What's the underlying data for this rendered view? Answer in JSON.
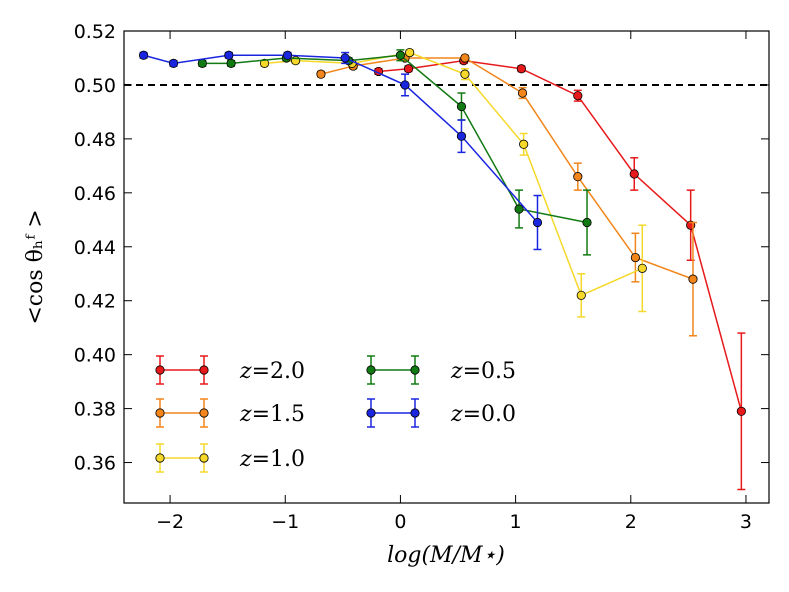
{
  "chart_data": {
    "type": "line",
    "xlabel": "log(M/M⋆)",
    "ylabel": "<cos θₕᶠ >",
    "xlim": [
      -2.4,
      3.2
    ],
    "ylim": [
      0.345,
      0.52
    ],
    "xticks": [
      -2,
      -1,
      0,
      1,
      2,
      3
    ],
    "xtick_labels": [
      "−2",
      "−1",
      "0",
      "1",
      "2",
      "3"
    ],
    "yticks": [
      0.36,
      0.38,
      0.4,
      0.42,
      0.44,
      0.46,
      0.48,
      0.5,
      0.52
    ],
    "ytick_labels": [
      "0.36",
      "0.38",
      "0.40",
      "0.42",
      "0.44",
      "0.46",
      "0.48",
      "0.50",
      "0.52"
    ],
    "reference_line": {
      "y": 0.5,
      "style": "dashed",
      "color": "#000000"
    },
    "grid": false,
    "legend_position": "lower-left",
    "series": [
      {
        "name": "z = 2.0",
        "color": "#e8191a",
        "x": [
          -0.19,
          0.07,
          0.55,
          1.05,
          1.54,
          2.03,
          2.52,
          2.96
        ],
        "y": [
          0.505,
          0.506,
          0.509,
          0.506,
          0.496,
          0.467,
          0.448,
          0.379
        ],
        "err": [
          0.001,
          0.001,
          0.001,
          0.001,
          0.002,
          0.006,
          0.013,
          0.029
        ]
      },
      {
        "name": "z = 1.5",
        "color": "#f2861a",
        "x": [
          -0.69,
          -0.41,
          0.04,
          0.56,
          1.06,
          1.54,
          2.04,
          2.54
        ],
        "y": [
          0.504,
          0.507,
          0.51,
          0.51,
          0.497,
          0.466,
          0.436,
          0.428
        ],
        "err": [
          0.001,
          0.001,
          0.001,
          0.001,
          0.002,
          0.005,
          0.009,
          0.021
        ]
      },
      {
        "name": "z = 1.0",
        "color": "#f5d82a",
        "x": [
          -1.18,
          -0.91,
          -0.42,
          0.08,
          0.56,
          1.07,
          1.57,
          2.1
        ],
        "y": [
          0.508,
          0.509,
          0.508,
          0.512,
          0.504,
          0.478,
          0.422,
          0.432
        ],
        "err": [
          0.001,
          0.001,
          0.001,
          0.001,
          0.002,
          0.004,
          0.008,
          0.016
        ]
      },
      {
        "name": "z = 0.5",
        "color": "#127a12",
        "x": [
          -1.72,
          -1.47,
          -0.99,
          -0.45,
          0.0,
          0.53,
          1.03,
          1.62
        ],
        "y": [
          0.508,
          0.508,
          0.51,
          0.509,
          0.511,
          0.492,
          0.454,
          0.449
        ],
        "err": [
          0.001,
          0.001,
          0.001,
          0.001,
          0.002,
          0.005,
          0.007,
          0.012
        ]
      },
      {
        "name": "z = 0.0",
        "color": "#1a25e0",
        "x": [
          -2.23,
          -1.97,
          -1.49,
          -0.98,
          -0.48,
          0.04,
          0.53,
          1.19
        ],
        "y": [
          0.511,
          0.508,
          0.511,
          0.511,
          0.51,
          0.5,
          0.481,
          0.449
        ],
        "err": [
          0.001,
          0.001,
          0.001,
          0.001,
          0.002,
          0.004,
          0.006,
          0.01
        ]
      }
    ]
  },
  "legend": {
    "col1": [
      {
        "prefix": "z",
        "value": "=2.0"
      },
      {
        "prefix": "z",
        "value": "=1.5"
      },
      {
        "prefix": "z",
        "value": "=1.0"
      }
    ],
    "col2": [
      {
        "prefix": "z",
        "value": "=0.5"
      },
      {
        "prefix": "z",
        "value": "=0.0"
      }
    ]
  }
}
